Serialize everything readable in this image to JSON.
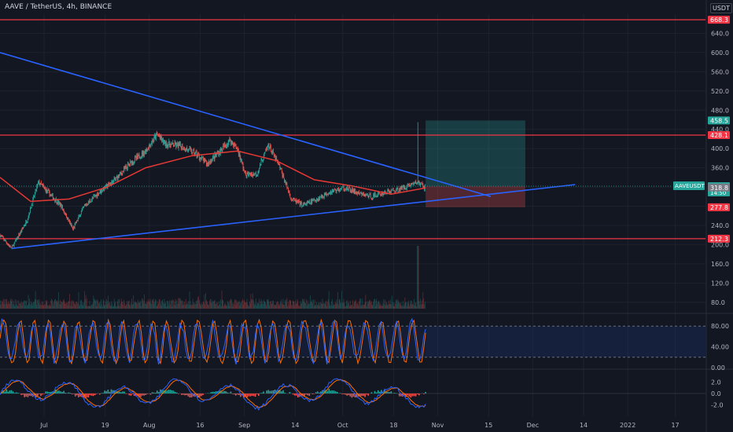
{
  "header": {
    "symbol_title": "AAVE / TetherUS, 4h, BINANCE",
    "currency_button": "USDT"
  },
  "colors": {
    "background": "#131722",
    "grid": "#1e222d",
    "up": "#26a69a",
    "down": "#ef5350",
    "trendline": "#2962ff",
    "ma": "#e53935",
    "level": "#f23645",
    "axis_text": "#b2b5be"
  },
  "chart_data": [
    {
      "type": "candlestick",
      "title": "AAVE / TetherUS, 4h, BINANCE",
      "ylim": [
        60,
        680
      ],
      "y_ticks": [
        80,
        120,
        160,
        200,
        240,
        280,
        320,
        360,
        400,
        440,
        480,
        520,
        560,
        600,
        640
      ],
      "x_ticks": [
        "Jul",
        "19",
        "Aug",
        "16",
        "Sep",
        "14",
        "Oct",
        "18",
        "Nov",
        "15",
        "Dec",
        "14",
        "2022",
        "17"
      ],
      "grid": true,
      "x_range_days": [
        0,
        184
      ],
      "price_path": [
        {
          "day": 0,
          "price": 220
        },
        {
          "day": 3,
          "price": 192
        },
        {
          "day": 7,
          "price": 250
        },
        {
          "day": 10,
          "price": 330
        },
        {
          "day": 13,
          "price": 305
        },
        {
          "day": 16,
          "price": 280
        },
        {
          "day": 19,
          "price": 232
        },
        {
          "day": 22,
          "price": 280
        },
        {
          "day": 26,
          "price": 310
        },
        {
          "day": 30,
          "price": 335
        },
        {
          "day": 34,
          "price": 370
        },
        {
          "day": 38,
          "price": 395
        },
        {
          "day": 41,
          "price": 430
        },
        {
          "day": 43,
          "price": 410
        },
        {
          "day": 47,
          "price": 405
        },
        {
          "day": 51,
          "price": 390
        },
        {
          "day": 54,
          "price": 368
        },
        {
          "day": 58,
          "price": 400
        },
        {
          "day": 60,
          "price": 418
        },
        {
          "day": 62,
          "price": 398
        },
        {
          "day": 64,
          "price": 345
        },
        {
          "day": 67,
          "price": 348
        },
        {
          "day": 70,
          "price": 408
        },
        {
          "day": 73,
          "price": 360
        },
        {
          "day": 76,
          "price": 295
        },
        {
          "day": 79,
          "price": 282
        },
        {
          "day": 82,
          "price": 292
        },
        {
          "day": 86,
          "price": 310
        },
        {
          "day": 90,
          "price": 318
        },
        {
          "day": 94,
          "price": 305
        },
        {
          "day": 97,
          "price": 300
        },
        {
          "day": 100,
          "price": 308
        },
        {
          "day": 104,
          "price": 315
        },
        {
          "day": 107,
          "price": 325
        },
        {
          "day": 109,
          "price": 330
        },
        {
          "day": 111,
          "price": 318
        }
      ],
      "candles_count": 660,
      "wick_spike": {
        "day": 109,
        "high": 455
      },
      "moving_average": [
        {
          "day": 0,
          "value": 340
        },
        {
          "day": 8,
          "value": 290
        },
        {
          "day": 18,
          "value": 295
        },
        {
          "day": 28,
          "value": 320
        },
        {
          "day": 38,
          "value": 360
        },
        {
          "day": 50,
          "value": 385
        },
        {
          "day": 62,
          "value": 395
        },
        {
          "day": 72,
          "value": 375
        },
        {
          "day": 82,
          "value": 335
        },
        {
          "day": 92,
          "value": 322
        },
        {
          "day": 102,
          "value": 305
        },
        {
          "day": 111,
          "value": 318
        }
      ],
      "horizontal_levels": [
        {
          "price": 668.3,
          "label": "668.3",
          "color": "#f23645"
        },
        {
          "price": 428.1,
          "label": "428.1",
          "color": "#f23645"
        },
        {
          "price": 212.3,
          "label": "212.3",
          "color": "#f23645"
        }
      ],
      "trendlines": [
        {
          "from": {
            "day": 0,
            "price": 600
          },
          "to": {
            "day": 128,
            "price": 300
          }
        },
        {
          "from": {
            "day": 3,
            "price": 192
          },
          "to": {
            "day": 150,
            "price": 325
          }
        }
      ],
      "position": {
        "entry_start_day": 111,
        "entry_end_day": 137,
        "entry": 321.8,
        "target": 458.5,
        "stop": 277.8
      },
      "price_labels": [
        {
          "price": 458.5,
          "text": "458.5",
          "color": "#26a69a"
        },
        {
          "price": 428.1,
          "text": "428.1",
          "color": "#f23645"
        },
        {
          "price": 321.8,
          "text": "321.8",
          "color": "#26a69a",
          "sub": "14:50"
        },
        {
          "price": 318.8,
          "text": "318.8",
          "color": "#787b86"
        },
        {
          "price": 277.8,
          "text": "277.8",
          "color": "#f23645"
        },
        {
          "price": 212.3,
          "text": "212.3",
          "color": "#f23645"
        },
        {
          "price": 668.3,
          "text": "668.3",
          "color": "#f23645"
        }
      ],
      "symbol_badge": "AAVEUSDT",
      "volume_spike_day": 109
    },
    {
      "type": "line",
      "title": "",
      "ylim": [
        0,
        100
      ],
      "y_ticks": [
        0,
        40,
        80
      ],
      "tick_labels": [
        "0.00",
        "40.00",
        "80.00"
      ],
      "band": [
        20,
        80
      ],
      "series": [
        {
          "color": "#2962ff"
        },
        {
          "color": "#ff6d00"
        }
      ]
    },
    {
      "type": "line",
      "title": "",
      "ylim": [
        -4,
        4
      ],
      "y_ticks": [
        -2,
        0,
        2
      ],
      "tick_labels": [
        "-2.0",
        "0.0",
        "2.0"
      ],
      "series": [
        {
          "color": "#2962ff"
        },
        {
          "color": "#ff6d00"
        }
      ]
    }
  ]
}
